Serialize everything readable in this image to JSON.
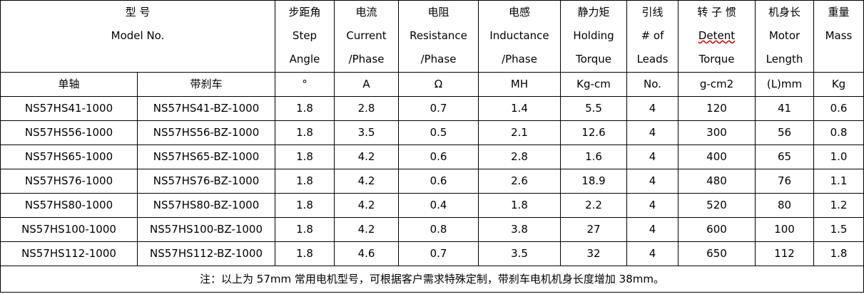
{
  "header": {
    "cells": [
      [
        "型 号",
        "Model No."
      ],
      [
        "步距角",
        "Step",
        "Angle"
      ],
      [
        "电流",
        "Current",
        "/Phase"
      ],
      [
        "电阻",
        "Resistance",
        "/Phase"
      ],
      [
        "电感",
        "Inductance",
        "/Phase"
      ],
      [
        "静力矩",
        "Holding",
        "Torque"
      ],
      [
        "引线",
        "# of",
        "Leads"
      ],
      [
        "转 子 惯",
        "Detent",
        "Torque"
      ],
      [
        "机身长",
        "Motor",
        "Length"
      ],
      [
        "重量",
        "Mass"
      ]
    ]
  },
  "units": [
    "单轴",
    "带刹车",
    "°",
    "A",
    "Ω",
    "MH",
    "Kg-cm",
    "No.",
    "g-cm2",
    "(L)mm",
    "Kg"
  ],
  "rows": [
    [
      "NS57HS41-1000",
      "NS57HS41-BZ-1000",
      "1.8",
      "2.8",
      "0.7",
      "1.4",
      "5.5",
      "4",
      "120",
      "41",
      "0.6"
    ],
    [
      "NS57HS56-1000",
      "NS57HS56-BZ-1000",
      "1.8",
      "3.5",
      "0.5",
      "2.1",
      "12.6",
      "4",
      "300",
      "56",
      "0.8"
    ],
    [
      "NS57HS65-1000",
      "NS57HS65-BZ-1000",
      "1.8",
      "4.2",
      "0.6",
      "2.8",
      "1.6",
      "4",
      "400",
      "65",
      "1.0"
    ],
    [
      "NS57HS76-1000",
      "NS57HS76-BZ-1000",
      "1.8",
      "4.2",
      "0.6",
      "2.6",
      "18.9",
      "4",
      "480",
      "76",
      "1.1"
    ],
    [
      "NS57HS80-1000",
      "NS57HS80-BZ-1000",
      "1.8",
      "4.2",
      "0.4",
      "1.8",
      "2.2",
      "4",
      "520",
      "80",
      "1.2"
    ],
    [
      "NS57HS100-1000",
      "NS57HS100-BZ-1000",
      "1.8",
      "4.2",
      "0.8",
      "3.8",
      "27",
      "4",
      "600",
      "100",
      "1.5"
    ],
    [
      "NS57HS112-1000",
      "NS57HS112-BZ-1000",
      "1.8",
      "4.6",
      "0.7",
      "3.5",
      "32",
      "4",
      "650",
      "112",
      "1.8"
    ]
  ],
  "note": "注：以上为 57mm 常用电机型号，可根据客户需求特殊定制，带刹车电机机身长度增加 38mm。"
}
